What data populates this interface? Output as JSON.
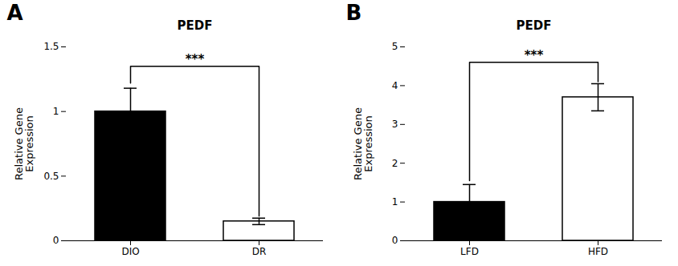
{
  "chart_data": [
    {
      "type": "bar",
      "title": "PEDF",
      "ylabel": "Relative Gene\nExpression",
      "categories": [
        "DIO",
        "DR"
      ],
      "values": [
        1.0,
        0.15
      ],
      "errors": [
        0.18,
        0.025
      ],
      "colors": [
        "black",
        "white"
      ],
      "ylim": [
        0,
        1.5
      ],
      "yticks": [
        0,
        0.5,
        1,
        1.5
      ],
      "grid": false,
      "annotations": [
        {
          "text": "A"
        },
        {
          "text": "***",
          "from": "DIO",
          "to": "DR",
          "y": 1.35,
          "from_y": 1.22,
          "to_y": 0.19
        }
      ]
    },
    {
      "type": "bar",
      "title": "PEDF",
      "ylabel": "Relative Gene\nExpression",
      "categories": [
        "LFD",
        "HFD"
      ],
      "values": [
        1.0,
        3.7
      ],
      "errors": [
        0.45,
        0.35
      ],
      "colors": [
        "black",
        "white"
      ],
      "ylim": [
        0,
        5
      ],
      "yticks": [
        0,
        1,
        2,
        3,
        4,
        5
      ],
      "grid": false,
      "annotations": [
        {
          "text": "B"
        },
        {
          "text": "***",
          "from": "LFD",
          "to": "HFD",
          "y": 4.6,
          "from_y": 1.55,
          "to_y": 4.1
        }
      ]
    }
  ]
}
